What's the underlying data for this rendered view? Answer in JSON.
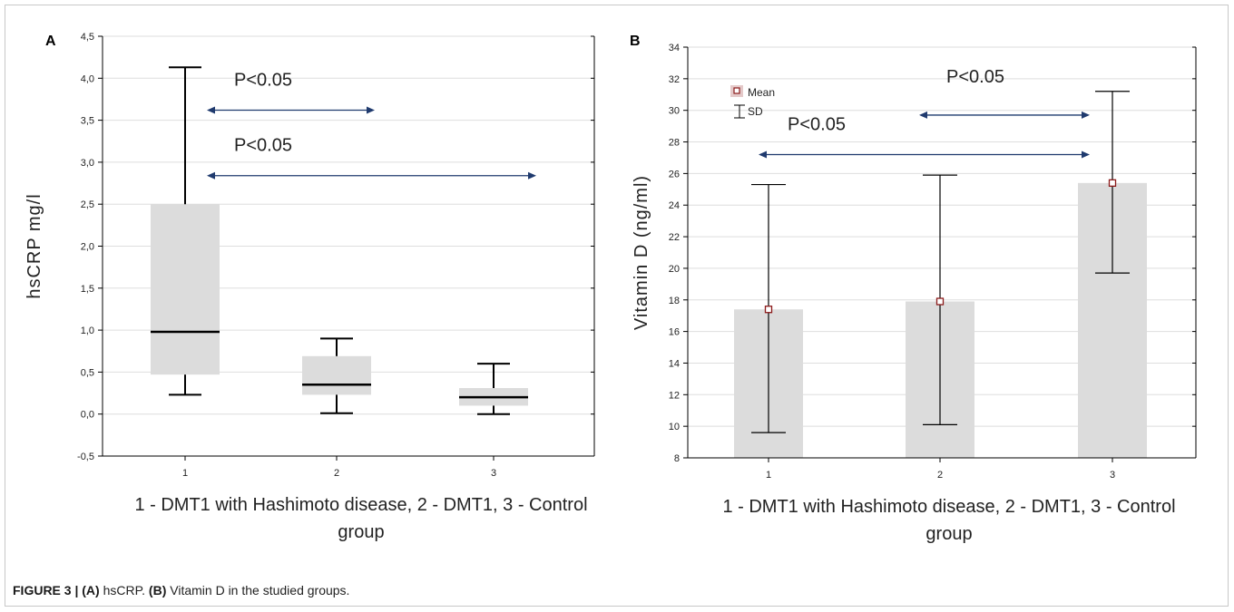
{
  "caption": {
    "label": "FIGURE 3 |",
    "a_label": "(A)",
    "a_text": "hsCRP.",
    "b_label": "(B)",
    "b_text": "Vitamin D in the studied groups."
  },
  "chart_data": [
    {
      "type": "box",
      "panel_label": "A",
      "ylabel": "hsCRP mg/l",
      "xlabel_line1": "1 - DMT1 with Hashimoto disease, 2 -  DMT1, 3 - Control",
      "xlabel_line2": "group",
      "categories": [
        "1",
        "2",
        "3"
      ],
      "ylim": [
        -0.5,
        4.5
      ],
      "yticks": [
        -0.5,
        0.0,
        0.5,
        1.0,
        1.5,
        2.0,
        2.5,
        3.0,
        3.5,
        4.0,
        4.5
      ],
      "ytick_labels": [
        "-0,5",
        "0,0",
        "0,5",
        "1,0",
        "1,5",
        "2,0",
        "2,5",
        "3,0",
        "3,5",
        "4,0",
        "4,5"
      ],
      "grid": true,
      "boxes": [
        {
          "category": "1",
          "min": 0.23,
          "q1": 0.47,
          "median": 0.98,
          "q3": 2.5,
          "max": 4.13
        },
        {
          "category": "2",
          "min": 0.01,
          "q1": 0.23,
          "median": 0.35,
          "q3": 0.69,
          "max": 0.9
        },
        {
          "category": "3",
          "min": 0.0,
          "q1": 0.1,
          "median": 0.2,
          "q3": 0.31,
          "max": 0.6
        }
      ],
      "annotations": [
        {
          "text": "P<0.05",
          "from": "1",
          "to": "2",
          "y": 3.62
        },
        {
          "text": "P<0.05",
          "from": "1",
          "to": "3",
          "y": 2.84
        }
      ]
    },
    {
      "type": "bar",
      "panel_label": "B",
      "ylabel": "Vitamin D  (ng/ml)",
      "xlabel_line1": "1 - DMT1 with Hashimoto disease, 2 -  DMT1, 3 - Control",
      "xlabel_line2": "group",
      "categories": [
        "1",
        "2",
        "3"
      ],
      "ylim": [
        8,
        34
      ],
      "yticks": [
        8,
        10,
        12,
        14,
        16,
        18,
        20,
        22,
        24,
        26,
        28,
        30,
        32,
        34
      ],
      "ytick_labels": [
        "8",
        "10",
        "12",
        "14",
        "16",
        "18",
        "20",
        "22",
        "24",
        "26",
        "28",
        "30",
        "32",
        "34"
      ],
      "grid": true,
      "legend": {
        "position": "top-left",
        "entries": [
          "Mean",
          "SD"
        ]
      },
      "means": [
        17.4,
        17.9,
        25.4
      ],
      "sd_low": [
        9.6,
        10.1,
        19.7
      ],
      "sd_high": [
        25.3,
        25.9,
        31.2
      ],
      "annotations": [
        {
          "text": "P<0.05",
          "from": "2",
          "to": "3",
          "y": 29.7
        },
        {
          "text": "P<0.05",
          "from": "1",
          "to": "3",
          "y": 27.2
        }
      ]
    }
  ],
  "colors": {
    "box_fill": "#dcdcdc",
    "arrow": "#1f3a6e",
    "mean_marker": "#8b1a1a",
    "grid": "#dedede",
    "axis": "#000000"
  }
}
